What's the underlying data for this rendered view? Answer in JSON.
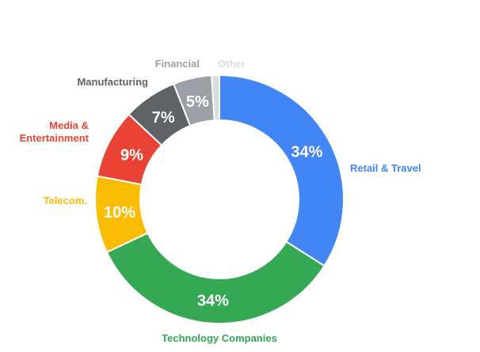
{
  "chart_data": {
    "type": "pie",
    "donut": true,
    "title": "",
    "slices": [
      {
        "label": "Retail & Travel",
        "value": 34,
        "display": "34%",
        "color": "#4285F4"
      },
      {
        "label": "Technology Companies",
        "value": 34,
        "display": "34%",
        "color": "#34A853"
      },
      {
        "label": "Telecom.",
        "value": 10,
        "display": "10%",
        "color": "#FBBC04"
      },
      {
        "label": "Media & Entertainment",
        "value": 9,
        "display": "9%",
        "color": "#EA4335"
      },
      {
        "label": "Manufacturing",
        "value": 7,
        "display": "7%",
        "color": "#5F6368"
      },
      {
        "label": "Financial",
        "value": 5,
        "display": "5%",
        "color": "#9AA0A6"
      },
      {
        "label": "Other",
        "value": 1,
        "display": "",
        "color": "#DADCE0"
      }
    ]
  }
}
